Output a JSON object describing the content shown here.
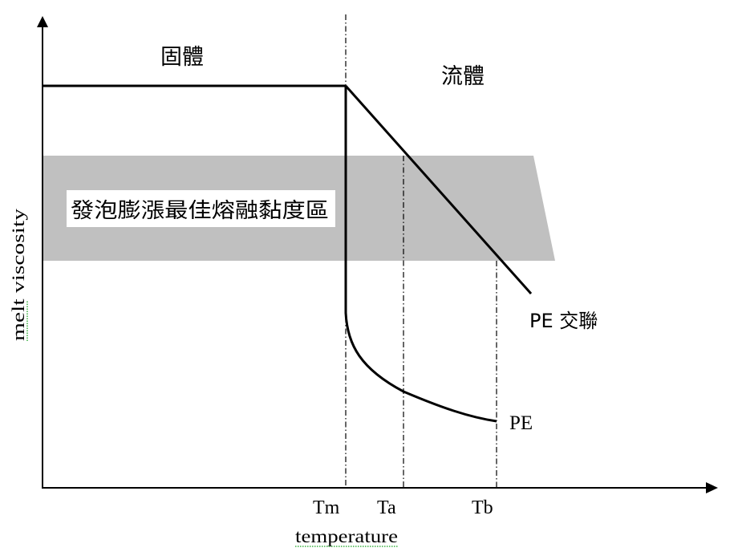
{
  "diagram": {
    "axes": {
      "y_label": "melt viscosity",
      "x_label": "temperature"
    },
    "x_ticks": [
      "Tm",
      "Ta",
      "Tb"
    ],
    "regions": {
      "solid": "固體",
      "fluid": "流體",
      "optimal_zone": "發泡膨漲最佳熔融黏度區"
    },
    "curves": {
      "crosslinked": "PE 交聯",
      "plain": "PE"
    },
    "colors": {
      "band": "#c0c0c0",
      "line": "#000000",
      "spellcheck_underline": "#3cb043"
    }
  }
}
